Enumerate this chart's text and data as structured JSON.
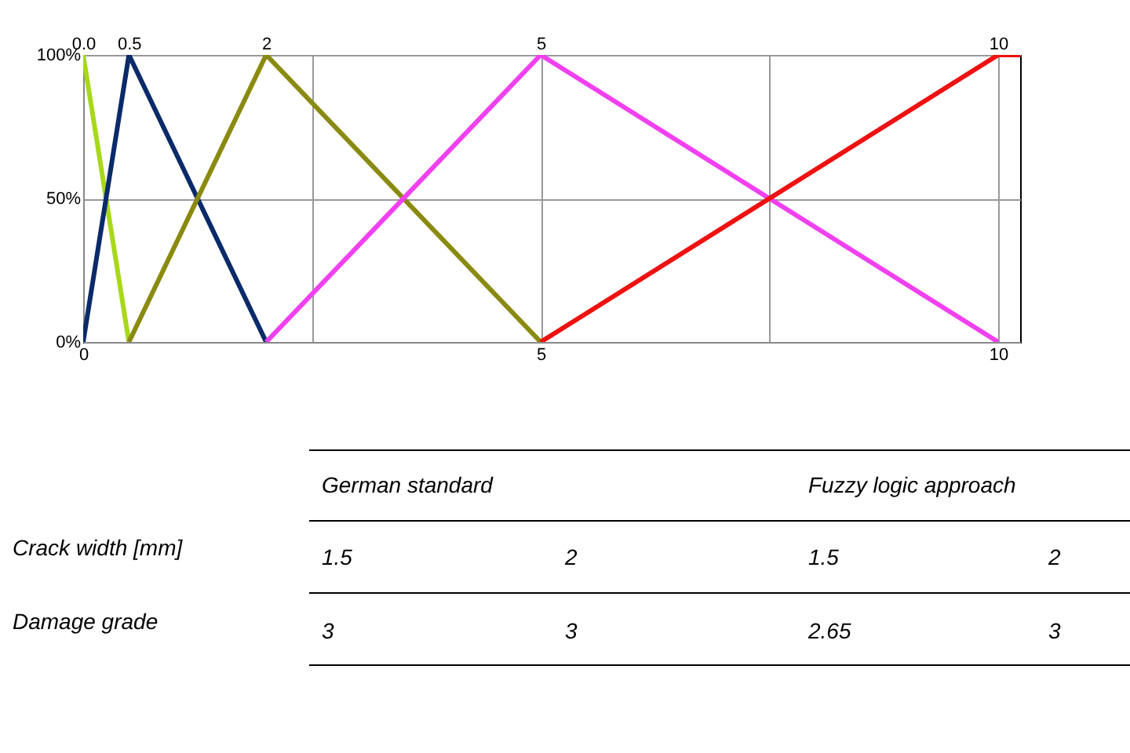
{
  "chart_data": {
    "type": "line",
    "xlim": [
      0,
      10.24
    ],
    "ylim": [
      0,
      100
    ],
    "xticks": [
      0,
      {
        "value": 2.5,
        "label": null
      },
      5,
      {
        "value": 7.5,
        "label": null
      },
      10
    ],
    "x2lim": [
      0,
      10.24
    ],
    "x2ticks": [
      {
        "value": 0,
        "label": "0.0"
      },
      0.5,
      2,
      5,
      10
    ],
    "yticks": [
      {
        "value": 0,
        "label": "0%"
      },
      {
        "value": 50,
        "label": "50%"
      },
      {
        "value": 100,
        "label": "100%"
      }
    ],
    "grid": true,
    "marker": "none",
    "line_style": "solid",
    "series": [
      {
        "color": "#a8d81a",
        "x": [
          0,
          0.5
        ],
        "values": [
          100,
          0
        ]
      },
      {
        "color": "#0a2a6a",
        "x": [
          0,
          0.5,
          2
        ],
        "values": [
          0,
          100,
          0
        ]
      },
      {
        "color": "#8a8a10",
        "x": [
          0.5,
          2,
          5
        ],
        "values": [
          0,
          100,
          0
        ]
      },
      {
        "color": "#f040f0",
        "x": [
          2,
          5,
          10
        ],
        "values": [
          0,
          100,
          0
        ]
      },
      {
        "color": "#ee1111",
        "x": [
          5,
          10,
          10.24
        ],
        "values": [
          0,
          100,
          100
        ]
      }
    ],
    "annotations": [
      "German standard",
      "Fuzzy logic approach",
      "Crack width [mm]",
      "1.5",
      "2",
      "1.5",
      "2",
      "Damage grade",
      "3",
      "3",
      "2.65",
      "3"
    ]
  }
}
